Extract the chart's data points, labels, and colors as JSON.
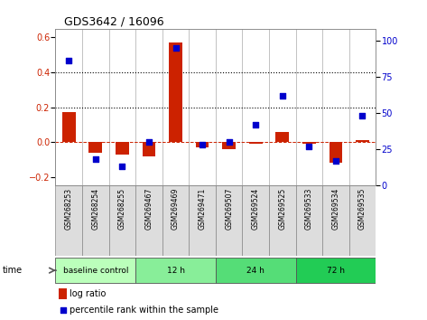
{
  "title": "GDS3642 / 16096",
  "samples": [
    "GSM268253",
    "GSM268254",
    "GSM268255",
    "GSM269467",
    "GSM269469",
    "GSM269471",
    "GSM269507",
    "GSM269524",
    "GSM269525",
    "GSM269533",
    "GSM269534",
    "GSM269535"
  ],
  "log_ratio": [
    0.17,
    -0.06,
    -0.07,
    -0.08,
    0.57,
    -0.03,
    -0.04,
    -0.01,
    0.06,
    -0.01,
    -0.12,
    0.01
  ],
  "percentile_rank": [
    86,
    18,
    13,
    30,
    95,
    28,
    30,
    42,
    62,
    27,
    17,
    48
  ],
  "groups": [
    {
      "label": "baseline control",
      "start": 0,
      "end": 3,
      "color": "#bbffbb"
    },
    {
      "label": "12 h",
      "start": 3,
      "end": 6,
      "color": "#88ee99"
    },
    {
      "label": "24 h",
      "start": 6,
      "end": 9,
      "color": "#55dd77"
    },
    {
      "label": "72 h",
      "start": 9,
      "end": 12,
      "color": "#22cc55"
    }
  ],
  "left_ylim": [
    -0.25,
    0.65
  ],
  "left_yticks": [
    -0.2,
    0.0,
    0.2,
    0.4,
    0.6
  ],
  "right_ylim": [
    0,
    108
  ],
  "right_yticks": [
    0,
    25,
    50,
    75,
    100
  ],
  "bar_color": "#cc2200",
  "dot_color": "#0000cc",
  "bar_width": 0.5,
  "dot_size": 22,
  "hline_color": "#cc2200",
  "dotted_line_color": "black",
  "dotted_line_values": [
    0.2,
    0.4
  ],
  "bg_color": "white",
  "plot_bg_color": "white",
  "sample_bg_color": "#dddddd",
  "tick_label_fontsize": 7,
  "title_fontsize": 9
}
